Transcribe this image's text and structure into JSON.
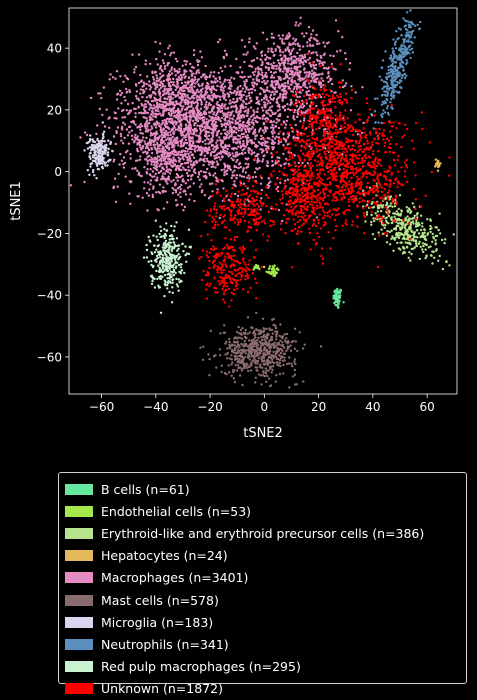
{
  "chart_data": {
    "type": "scatter",
    "xlabel": "tSNE2",
    "ylabel": "tSNE1",
    "xlim": [
      -72,
      71
    ],
    "ylim": [
      -72,
      53
    ],
    "xticks": [
      -60,
      -40,
      -20,
      0,
      20,
      40,
      60
    ],
    "yticks": [
      -60,
      -40,
      -20,
      0,
      20,
      40
    ],
    "grid": false,
    "legend_position": "bottom",
    "series": [
      {
        "name": "B cells (n=61)",
        "color": "#66e8a0",
        "n": 61,
        "clusters": [
          {
            "x": 27,
            "y": -41,
            "sx": 0.8,
            "sy": 1.8
          }
        ]
      },
      {
        "name": "Endothelial cells (n=53)",
        "color": "#a6e84c",
        "n": 53,
        "clusters": [
          {
            "x": 3,
            "y": -32,
            "sx": 1.2,
            "sy": 1.0
          },
          {
            "x": -3,
            "y": -31,
            "sx": 0.8,
            "sy": 0.5
          }
        ]
      },
      {
        "name": "Erythroid-like and erythroid precursor cells (n=386)",
        "color": "#b5e48c",
        "n": 386,
        "clusters": [
          {
            "x": 52,
            "y": -18,
            "sx": 3.5,
            "sy": 8,
            "rot": 62
          }
        ]
      },
      {
        "name": "Hepatocytes (n=24)",
        "color": "#e6b85c",
        "n": 24,
        "clusters": [
          {
            "x": 64,
            "y": 2.5,
            "sx": 0.5,
            "sy": 0.8
          }
        ]
      },
      {
        "name": "Macrophages (n=3401)",
        "color": "#e58ac3",
        "n": 3401,
        "clusters": [
          {
            "x": -18,
            "y": 14,
            "sx": 18,
            "sy": 10
          },
          {
            "x": 10,
            "y": 32,
            "sx": 9,
            "sy": 6
          },
          {
            "x": -33,
            "y": 24,
            "sx": 8,
            "sy": 6
          },
          {
            "x": -36,
            "y": 4,
            "sx": 5,
            "sy": 6
          }
        ]
      },
      {
        "name": "Mast cells (n=578)",
        "color": "#8a6b6e",
        "n": 578,
        "clusters": [
          {
            "x": -2,
            "y": -58,
            "sx": 7,
            "sy": 4
          }
        ]
      },
      {
        "name": "Microglia (n=183)",
        "color": "#d8d6ec",
        "n": 183,
        "clusters": [
          {
            "x": -61,
            "y": 6,
            "sx": 2.0,
            "sy": 3.0
          }
        ]
      },
      {
        "name": "Neutrophils (n=341)",
        "color": "#5b8fbf",
        "n": 341,
        "clusters": [
          {
            "x": 49,
            "y": 34,
            "sx": 1.8,
            "sy": 10,
            "rot": -20
          }
        ]
      },
      {
        "name": "Red pulp macrophages (n=295)",
        "color": "#c8f2d0",
        "n": 295,
        "clusters": [
          {
            "x": -36,
            "y": -28,
            "sx": 3.0,
            "sy": 5.0
          }
        ]
      },
      {
        "name": "Unknown (n=1872)",
        "color": "#ff0000",
        "n": 1872,
        "clusters": [
          {
            "x": 30,
            "y": 0,
            "sx": 12,
            "sy": 9
          },
          {
            "x": 22,
            "y": 18,
            "sx": 5,
            "sy": 6
          },
          {
            "x": -13,
            "y": -32,
            "sx": 5,
            "sy": 5
          },
          {
            "x": -8,
            "y": -12,
            "sx": 6,
            "sy": 4
          },
          {
            "x": 14,
            "y": -8,
            "sx": 4,
            "sy": 7
          }
        ]
      }
    ]
  }
}
